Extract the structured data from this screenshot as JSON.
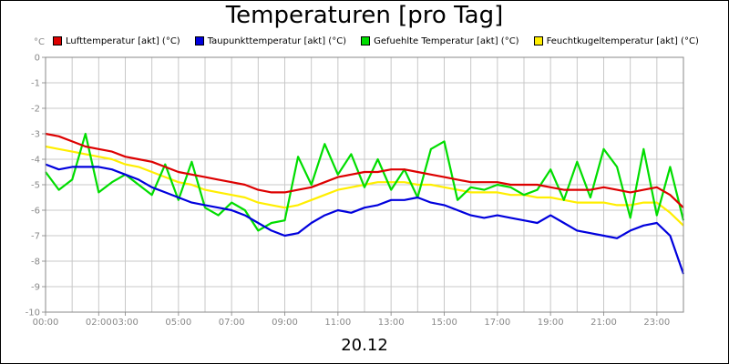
{
  "chart_data": {
    "type": "line",
    "title": "Temperaturen [pro Tag]",
    "unit": "°C",
    "xlabel": "20.12",
    "ylim": [
      -10,
      0
    ],
    "xlim_hours": [
      0,
      24
    ],
    "y_ticks": [
      "0",
      "-1",
      "-2",
      "-3",
      "-4",
      "-5",
      "-6",
      "-7",
      "-8",
      "-9",
      "-10"
    ],
    "x_ticks": [
      "00:00",
      "02:00",
      "03:00",
      "05:00",
      "07:00",
      "09:00",
      "11:00",
      "13:00",
      "15:00",
      "17:00",
      "19:00",
      "21:00",
      "23:00"
    ],
    "x_tick_hours": [
      0,
      2,
      3,
      5,
      7,
      9,
      11,
      13,
      15,
      17,
      19,
      21,
      23
    ],
    "grid": true,
    "series": [
      {
        "name": "Lufttemperatur [akt] (°C)",
        "color": "#dd0000",
        "x": [
          0,
          0.5,
          1,
          1.5,
          2,
          2.5,
          3,
          3.5,
          4,
          4.5,
          5,
          5.5,
          6,
          6.5,
          7,
          7.5,
          8,
          8.5,
          9,
          9.5,
          10,
          10.5,
          11,
          11.5,
          12,
          12.5,
          13,
          13.5,
          14,
          14.5,
          15,
          15.5,
          16,
          16.5,
          17,
          17.5,
          18,
          18.5,
          19,
          19.5,
          20,
          20.5,
          21,
          21.5,
          22,
          22.5,
          23,
          23.5,
          24
        ],
        "values": [
          -3.0,
          -3.1,
          -3.3,
          -3.5,
          -3.6,
          -3.7,
          -3.9,
          -4.0,
          -4.1,
          -4.3,
          -4.5,
          -4.6,
          -4.7,
          -4.8,
          -4.9,
          -5.0,
          -5.2,
          -5.3,
          -5.3,
          -5.2,
          -5.1,
          -4.9,
          -4.7,
          -4.6,
          -4.5,
          -4.5,
          -4.4,
          -4.4,
          -4.5,
          -4.6,
          -4.7,
          -4.8,
          -4.9,
          -4.9,
          -4.9,
          -5.0,
          -5.0,
          -5.0,
          -5.1,
          -5.2,
          -5.2,
          -5.2,
          -5.1,
          -5.2,
          -5.3,
          -5.2,
          -5.1,
          -5.4,
          -5.9
        ]
      },
      {
        "name": "Taupunkttemperatur [akt] (°C)",
        "color": "#0000dd",
        "x": [
          0,
          0.5,
          1,
          1.5,
          2,
          2.5,
          3,
          3.5,
          4,
          4.5,
          5,
          5.5,
          6,
          6.5,
          7,
          7.5,
          8,
          8.5,
          9,
          9.5,
          10,
          10.5,
          11,
          11.5,
          12,
          12.5,
          13,
          13.5,
          14,
          14.5,
          15,
          15.5,
          16,
          16.5,
          17,
          17.5,
          18,
          18.5,
          19,
          19.5,
          20,
          20.5,
          21,
          21.5,
          22,
          22.5,
          23,
          23.5,
          24
        ],
        "values": [
          -4.2,
          -4.4,
          -4.3,
          -4.3,
          -4.3,
          -4.4,
          -4.6,
          -4.8,
          -5.1,
          -5.3,
          -5.5,
          -5.7,
          -5.8,
          -5.9,
          -6.0,
          -6.2,
          -6.5,
          -6.8,
          -7.0,
          -6.9,
          -6.5,
          -6.2,
          -6.0,
          -6.1,
          -5.9,
          -5.8,
          -5.6,
          -5.6,
          -5.5,
          -5.7,
          -5.8,
          -6.0,
          -6.2,
          -6.3,
          -6.2,
          -6.3,
          -6.4,
          -6.5,
          -6.2,
          -6.5,
          -6.8,
          -6.9,
          -7.0,
          -7.1,
          -6.8,
          -6.6,
          -6.5,
          -7.0,
          -8.5
        ]
      },
      {
        "name": "Gefuehlte Temperatur [akt] (°C)",
        "color": "#00dd00",
        "x": [
          0,
          0.5,
          1,
          1.5,
          2,
          2.5,
          3,
          3.5,
          4,
          4.5,
          5,
          5.5,
          6,
          6.5,
          7,
          7.5,
          8,
          8.5,
          9,
          9.5,
          10,
          10.5,
          11,
          11.5,
          12,
          12.5,
          13,
          13.5,
          14,
          14.5,
          15,
          15.5,
          16,
          16.5,
          17,
          17.5,
          18,
          18.5,
          19,
          19.5,
          20,
          20.5,
          21,
          21.5,
          22,
          22.5,
          23,
          23.5,
          24
        ],
        "values": [
          -4.5,
          -5.2,
          -4.8,
          -3.0,
          -5.3,
          -4.9,
          -4.6,
          -5.0,
          -5.4,
          -4.2,
          -5.6,
          -4.1,
          -5.9,
          -6.2,
          -5.7,
          -6.0,
          -6.8,
          -6.5,
          -6.4,
          -3.9,
          -5.0,
          -3.4,
          -4.6,
          -3.8,
          -5.1,
          -4.0,
          -5.2,
          -4.4,
          -5.5,
          -3.6,
          -3.3,
          -5.6,
          -5.1,
          -5.2,
          -5.0,
          -5.1,
          -5.4,
          -5.2,
          -4.4,
          -5.6,
          -4.1,
          -5.5,
          -3.6,
          -4.3,
          -6.3,
          -3.6,
          -6.2,
          -4.3,
          -6.4
        ]
      },
      {
        "name": "Feuchtkugeltemperatur [akt] (°C)",
        "color": "#ffee00",
        "x": [
          0,
          0.5,
          1,
          1.5,
          2,
          2.5,
          3,
          3.5,
          4,
          4.5,
          5,
          5.5,
          6,
          6.5,
          7,
          7.5,
          8,
          8.5,
          9,
          9.5,
          10,
          10.5,
          11,
          11.5,
          12,
          12.5,
          13,
          13.5,
          14,
          14.5,
          15,
          15.5,
          16,
          16.5,
          17,
          17.5,
          18,
          18.5,
          19,
          19.5,
          20,
          20.5,
          21,
          21.5,
          22,
          22.5,
          23,
          23.5,
          24
        ],
        "values": [
          -3.5,
          -3.6,
          -3.7,
          -3.8,
          -3.9,
          -4.0,
          -4.2,
          -4.3,
          -4.5,
          -4.7,
          -4.9,
          -5.0,
          -5.2,
          -5.3,
          -5.4,
          -5.5,
          -5.7,
          -5.8,
          -5.9,
          -5.8,
          -5.6,
          -5.4,
          -5.2,
          -5.1,
          -5.0,
          -4.9,
          -4.9,
          -4.9,
          -5.0,
          -5.0,
          -5.1,
          -5.2,
          -5.3,
          -5.3,
          -5.3,
          -5.4,
          -5.4,
          -5.5,
          -5.5,
          -5.6,
          -5.7,
          -5.7,
          -5.7,
          -5.8,
          -5.8,
          -5.7,
          -5.7,
          -6.1,
          -6.6
        ]
      }
    ]
  }
}
